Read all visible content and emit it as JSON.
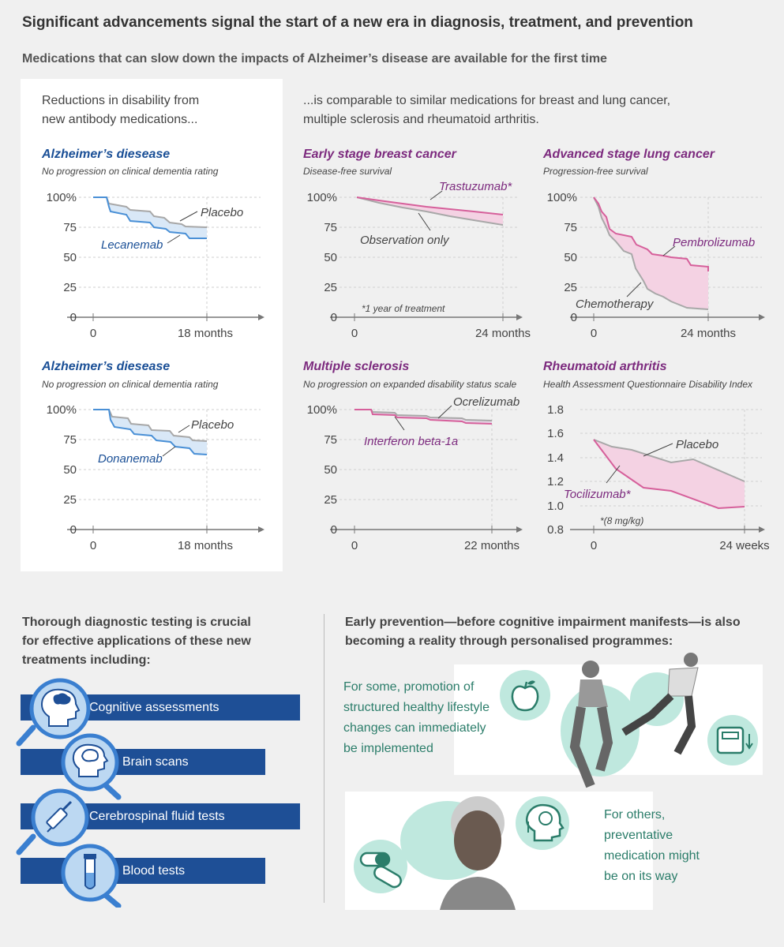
{
  "header": {
    "title": "Significant advancements signal the start of a new era in diagnosis, treatment, and prevention",
    "subtitle": "Medications that can slow down the impacts of  Alzheimer’s disease are available for the first time"
  },
  "intro_left": [
    "Reductions in disability from",
    "new antibody medications..."
  ],
  "intro_right": [
    "...is comparable to similar medications for breast and lung cancer,",
    "multiple sclerosis and rheumatoid arthritis."
  ],
  "colors": {
    "alz_blue": "#1a4f96",
    "onc_purple": "#7c2a7e",
    "pink": "#d6609b",
    "grey": "#a8a8a8",
    "teal": "#2b7d6a"
  },
  "charts": [
    {
      "id": "lecanemab",
      "title": "Alzheimer’s diesease",
      "subtitle": "No progression on clinical dementia rating",
      "yticks": [
        "100%",
        "75",
        "50",
        "25",
        "0"
      ],
      "xticks": [
        "0",
        "18 months"
      ],
      "series_labels": [
        "Placebo",
        "Lecanemab"
      ]
    },
    {
      "id": "breast",
      "title": "Early stage breast cancer",
      "subtitle": "Disease-free survival",
      "yticks": [
        "100%",
        "75",
        "50",
        "25",
        "0"
      ],
      "xticks": [
        "0",
        "24 months"
      ],
      "series_labels": [
        "Trastuzumab*",
        "Observation only"
      ],
      "note": "*1 year of treatment"
    },
    {
      "id": "lung",
      "title": "Advanced stage lung cancer",
      "subtitle": "Progression-free survival",
      "yticks": [
        "100%",
        "75",
        "50",
        "25",
        "0"
      ],
      "xticks": [
        "0",
        "24 months"
      ],
      "series_labels": [
        "Pembrolizumab",
        "Chemotherapy"
      ]
    },
    {
      "id": "donanemab",
      "title": "Alzheimer’s diesease",
      "subtitle": "No progression on clinical dementia rating",
      "yticks": [
        "100%",
        "75",
        "50",
        "25",
        "0"
      ],
      "xticks": [
        "0",
        "18 months"
      ],
      "series_labels": [
        "Placebo",
        "Donanemab"
      ]
    },
    {
      "id": "ms",
      "title": "Multiple sclerosis",
      "subtitle": "No progression on expanded disability status scale",
      "yticks": [
        "100%",
        "75",
        "50",
        "25",
        "0"
      ],
      "xticks": [
        "0",
        "22 months"
      ],
      "series_labels": [
        "Ocrelizumab",
        "Interferon beta-1a"
      ]
    },
    {
      "id": "ra",
      "title": "Rheumatoid arthritis",
      "subtitle": "Health Assessment Questionnaire Disability Index",
      "yticks": [
        "1.8",
        "1.6",
        "1.4",
        "1.2",
        "1.0",
        "0.8"
      ],
      "xticks": [
        "0",
        "24 weeks"
      ],
      "series_labels": [
        "Placebo",
        "Tocilizumab*"
      ],
      "note": "*(8 mg/kg)"
    }
  ],
  "diagnostics": {
    "heading": [
      "Thorough diagnostic testing is crucial",
      "for effective applications of these new",
      "treatments including:"
    ],
    "items": [
      "Cognitive assessments",
      "Brain scans",
      "Cerebrospinal fluid tests",
      "Blood tests"
    ]
  },
  "prevention": {
    "heading": [
      "Early prevention—before cognitive impairment manifests—is also",
      "becoming a reality through personalised programmes:"
    ],
    "lifestyle": [
      "For some, promotion of",
      "structured healthy lifestyle",
      "changes can immediately",
      "be implemented"
    ],
    "medication": [
      "For others,",
      "preventative",
      "medication might",
      "be on its way"
    ]
  }
}
